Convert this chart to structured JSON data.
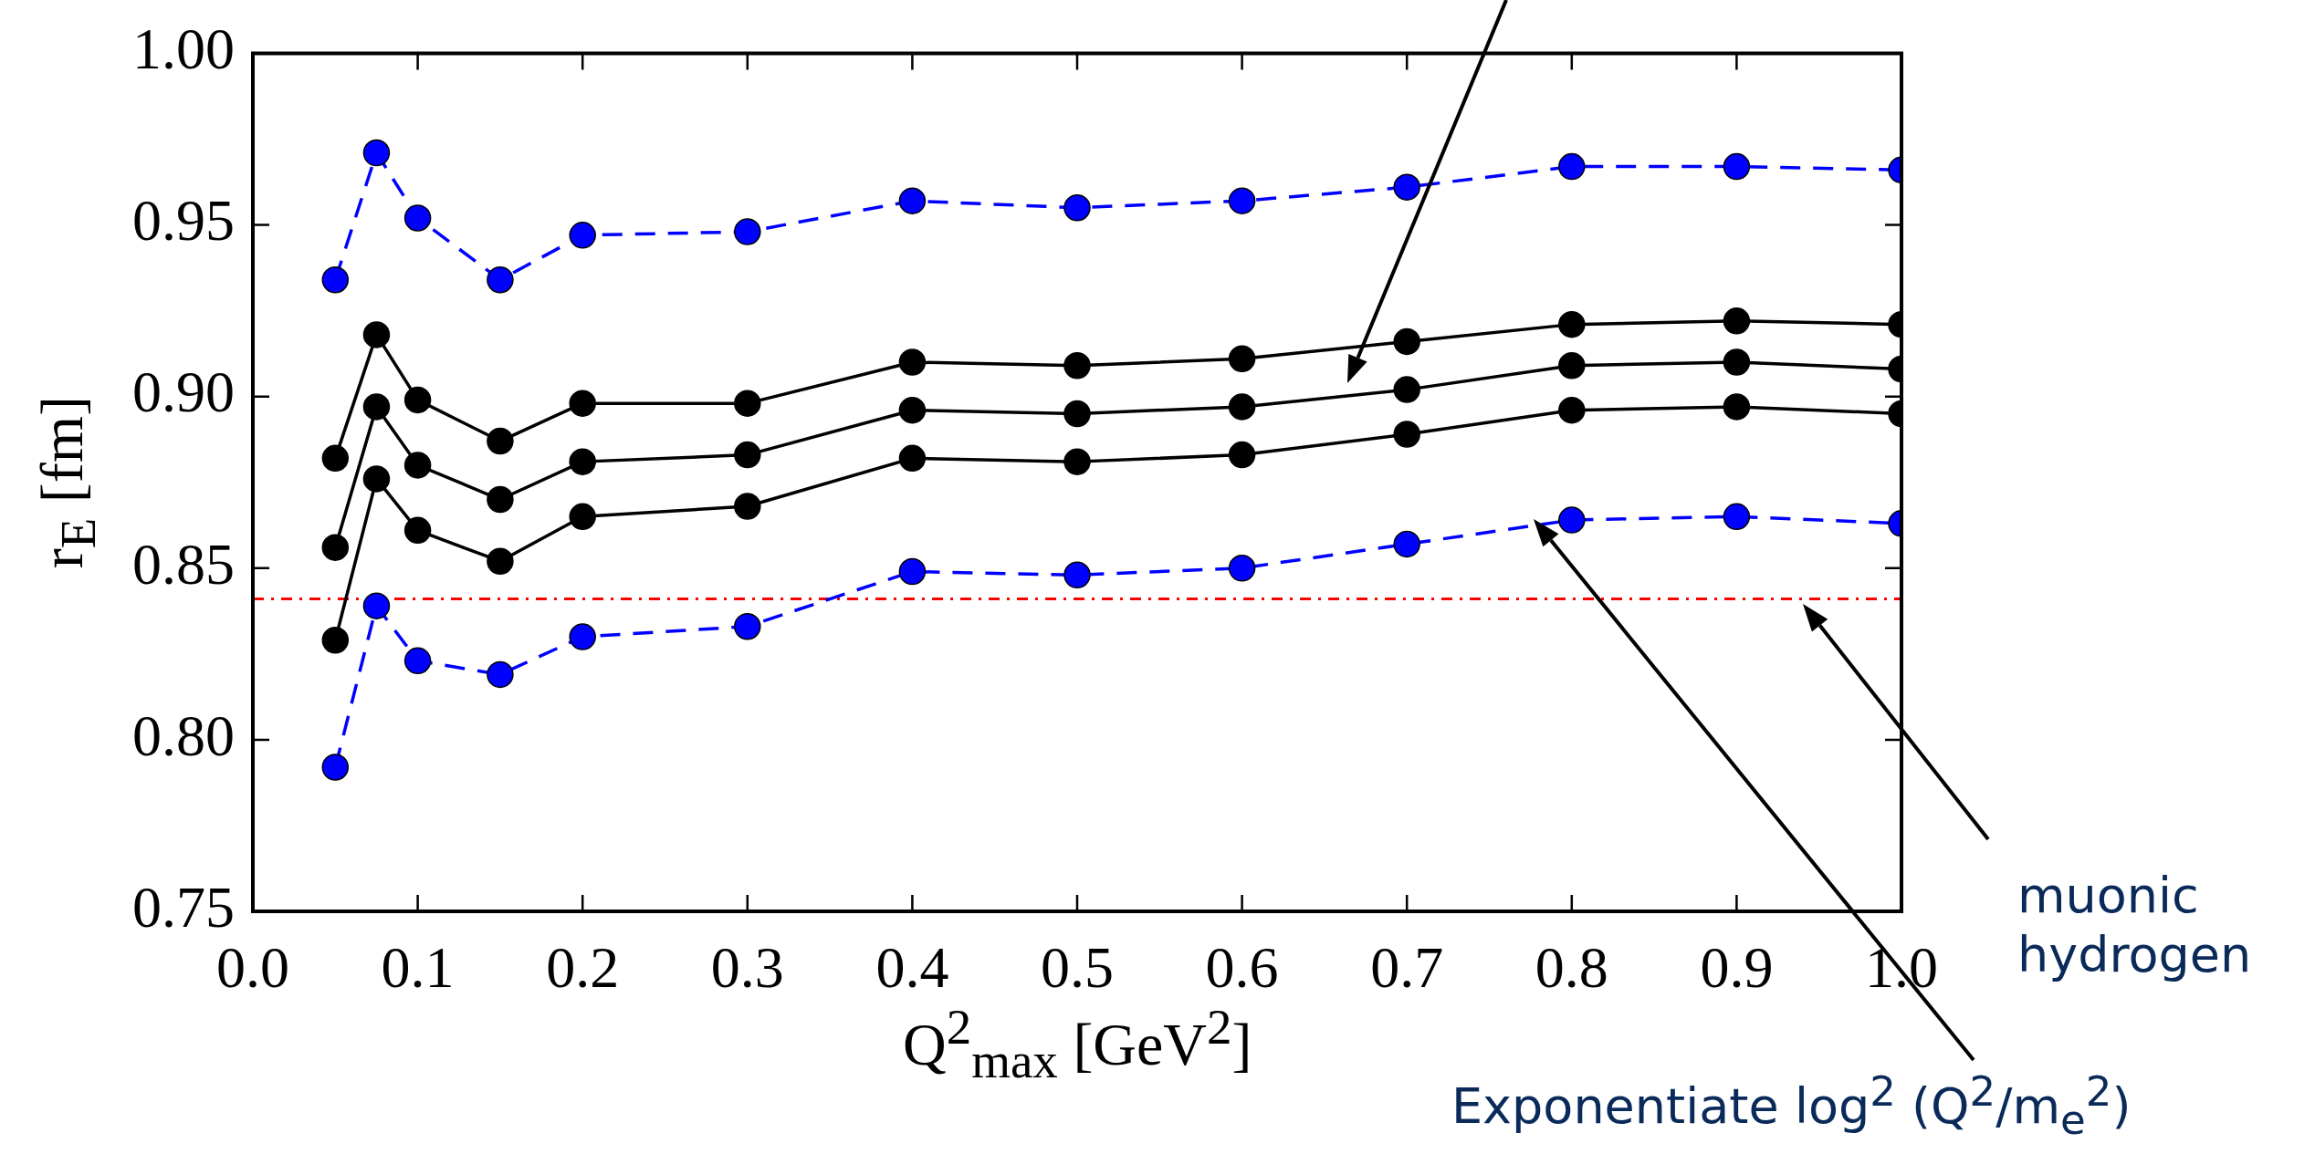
{
  "chart_data": {
    "type": "line",
    "xlabel": "Q$^{2}$$_{max}$ [GeV$^{2}$]",
    "ylabel": "r$_{E}$ [fm]",
    "x": [
      0.05,
      0.075,
      0.1,
      0.15,
      0.2,
      0.3,
      0.4,
      0.5,
      0.6,
      0.7,
      0.8,
      0.9,
      1.0
    ],
    "series": [
      {
        "color": "#0000ff",
        "line_style": "dashed",
        "values": [
          0.934,
          0.971,
          0.952,
          0.934,
          0.947,
          0.948,
          0.957,
          0.955,
          0.957,
          0.961,
          0.967,
          0.967,
          0.966
        ]
      },
      {
        "color": "#000000",
        "line_style": "solid",
        "values": [
          0.882,
          0.918,
          0.899,
          0.887,
          0.898,
          0.898,
          0.91,
          0.909,
          0.911,
          0.916,
          0.921,
          0.922,
          0.921
        ]
      },
      {
        "color": "#000000",
        "line_style": "solid",
        "values": [
          0.856,
          0.897,
          0.88,
          0.87,
          0.881,
          0.883,
          0.896,
          0.895,
          0.897,
          0.902,
          0.909,
          0.91,
          0.908
        ]
      },
      {
        "color": "#000000",
        "line_style": "solid",
        "values": [
          0.829,
          0.876,
          0.861,
          0.852,
          0.865,
          0.868,
          0.882,
          0.881,
          0.883,
          0.889,
          0.896,
          0.897,
          0.895
        ]
      },
      {
        "color": "#0000ff",
        "line_style": "dashed",
        "values": [
          0.792,
          0.839,
          0.823,
          0.819,
          0.83,
          0.833,
          0.849,
          0.848,
          0.85,
          0.857,
          0.864,
          0.865,
          0.863
        ]
      }
    ],
    "xlim": [
      0.0,
      1.0
    ],
    "xticks": [
      {
        "value": 0,
        "label": "0.0"
      },
      0.1,
      0.2,
      0.3,
      0.4,
      0.5,
      0.6,
      0.7,
      0.8,
      0.9,
      {
        "value": 1,
        "label": "1.0"
      }
    ],
    "ylim": [
      0.75,
      1.0
    ],
    "yticks": [
      {
        "value": 0.75,
        "label": "0.75"
      },
      {
        "value": 0.8,
        "label": "0.80"
      },
      {
        "value": 0.85,
        "label": "0.85"
      },
      {
        "value": 0.9,
        "label": "0.90"
      },
      {
        "value": 0.95,
        "label": "0.95"
      },
      {
        "value": 1.0,
        "label": "1.00"
      }
    ],
    "ref_lines": [
      {
        "axis": "y",
        "value": 0.841,
        "color": "#ff0000",
        "line_style": "dashed"
      }
    ],
    "annotations": [
      "muonic hydrogen",
      "Exponentiate log$^{2}$ (Q$^{2}$/m$_{e}$$^{2}$)"
    ],
    "grid": false,
    "legend": false,
    "marker": "circle"
  }
}
